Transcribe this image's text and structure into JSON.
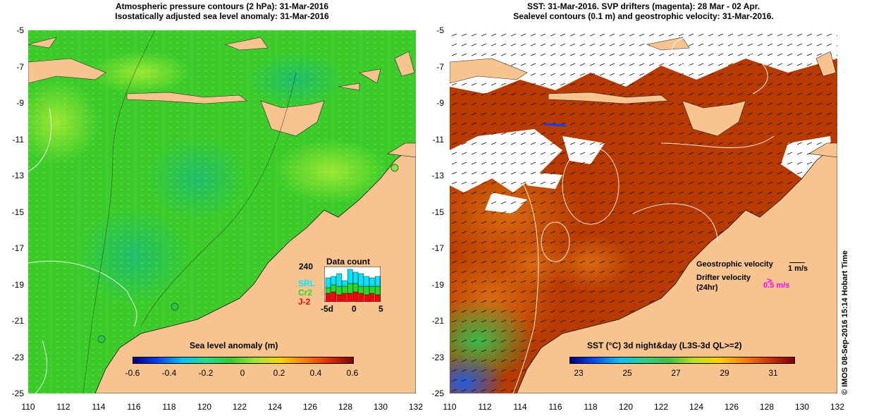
{
  "left_panel": {
    "title_line1": "Atmospheric pressure contours (2 hPa): 31-Mar-2016",
    "title_line2": "Isostatically adjusted sea level anomaly: 31-Mar-2016",
    "colorbar_title": "Sea level anomaly (m)",
    "colorbar_ticks": [
      "-0.6",
      "-0.4",
      "-0.2",
      "0",
      "0.2",
      "0.4",
      "0.6"
    ],
    "data_count": {
      "title": "Data count",
      "ymax_label": "240",
      "x_labels": [
        "-5d",
        "0",
        "5"
      ],
      "legend": [
        "SRL",
        "Cr2",
        "J-2"
      ],
      "colors": {
        "SRL": "#00e5ff",
        "Cr2": "#22dd22",
        "J-2": "#ff0000"
      }
    }
  },
  "right_panel": {
    "title_line1": "SST: 31-Mar-2016. SVP drifters (magenta): 28 Mar - 02 Apr.",
    "title_line2": "Sealevel contours (0.1 m) and geostrophic velocity: 31-Mar-2016.",
    "colorbar_title": "SST (°C) 3d night&day (L3S-3d QL>=2)",
    "colorbar_ticks": [
      "23",
      "25",
      "27",
      "29",
      "31"
    ],
    "legend": {
      "geostrophic_label": "Geostrophic velocity",
      "geostrophic_scale": "1 m/s",
      "drifter_label": "Drifter velocity",
      "drifter_sub": "(24hr)",
      "drifter_scale": "0.5 m/s",
      "drifter_color": "#ff00ff"
    }
  },
  "axes": {
    "y_ticks": [
      "-5",
      "-7",
      "-9",
      "-11",
      "-13",
      "-15",
      "-17",
      "-19",
      "-21",
      "-23",
      "-25"
    ],
    "x_ticks": [
      "110",
      "112",
      "114",
      "116",
      "118",
      "120",
      "122",
      "124",
      "126",
      "128",
      "130",
      "132"
    ]
  },
  "stamp": "© IMOS 08-Sep-2016 15:14 Hobart Time",
  "colors": {
    "land": "#f7c38f",
    "sla_green": "#2ecc2e",
    "sst_red": "#b83a00"
  }
}
